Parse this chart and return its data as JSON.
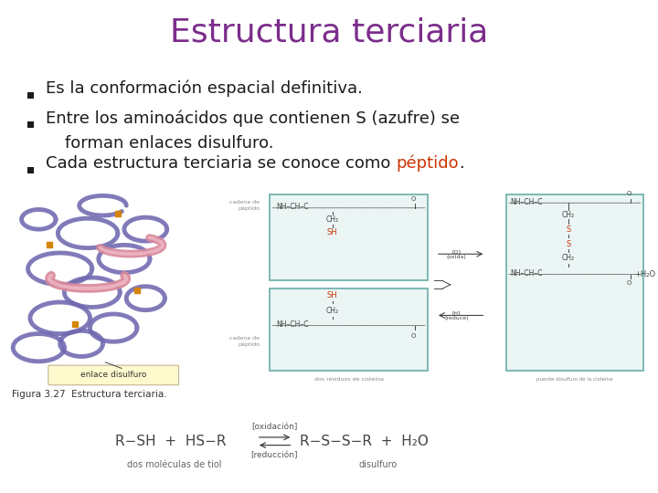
{
  "title": "Estructura terciaria",
  "title_color": "#7B2D8B",
  "title_fontsize": 26,
  "bullet_color": "#1a1a1a",
  "bullet_fontsize": 13,
  "bullet1": "Es la conformación espacial definitiva.",
  "bullet2_line1": "Entre los aminoácidos que contienen S (azufre) se",
  "bullet2_line2": "forman enlaces disulfuro.",
  "bullet3_pre": "Cada estructura terciaria se conoce como ",
  "bullet3_highlight": "péptido",
  "bullet3_post": ".",
  "highlight_color": "#CC3300",
  "fig_caption": "Figura 3.27  Estructura terciaria.",
  "fig_caption_fontsize": 7.5,
  "formula_left": "R−SH  +  HS−R",
  "formula_arrow_top": "[oxidación]",
  "formula_arrow_bot": "[reducción]",
  "formula_right": "R−S−S−R  +  H₂O",
  "formula_label_left": "dos moléculas de tiol",
  "formula_label_right": "disulfuro",
  "formula_fontsize": 11,
  "background_color": "#FFFFFF",
  "purple": "#7068B0",
  "pink": "#D8899A",
  "orange": "#D4840A",
  "teal": "#6AADA8",
  "red_chem": "#CC3300",
  "dark_gray": "#444444",
  "light_gray": "#888888"
}
